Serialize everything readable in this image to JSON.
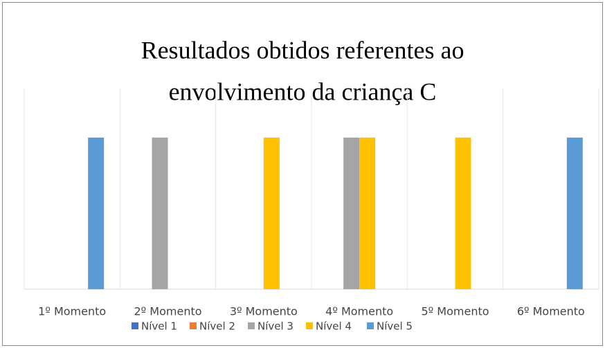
{
  "chart_data": {
    "type": "bar",
    "title_lines": [
      "Resultados obtidos referentes ao",
      "envolvimento da criança C"
    ],
    "categories": [
      "1º Momento",
      "2º Momento",
      "3º Momento",
      "4º Momento",
      "5º Momento",
      "6º Momento"
    ],
    "series": [
      {
        "name": "Nível 1",
        "color": "#4472c4",
        "values": [
          0,
          0,
          0,
          0,
          0,
          0
        ]
      },
      {
        "name": "Nível 2",
        "color": "#ed7d31",
        "values": [
          0,
          0,
          0,
          0,
          0,
          0
        ]
      },
      {
        "name": "Nível 3",
        "color": "#a5a5a5",
        "values": [
          0,
          1,
          0,
          1,
          0,
          0
        ]
      },
      {
        "name": "Nível 4",
        "color": "#ffc000",
        "values": [
          0,
          0,
          1,
          1,
          1,
          0
        ]
      },
      {
        "name": "Nível 5",
        "color": "#5b9bd5",
        "values": [
          1,
          0,
          0,
          0,
          0,
          1
        ]
      }
    ],
    "ylim": [
      0,
      1.2
    ],
    "legend": "bottom"
  }
}
